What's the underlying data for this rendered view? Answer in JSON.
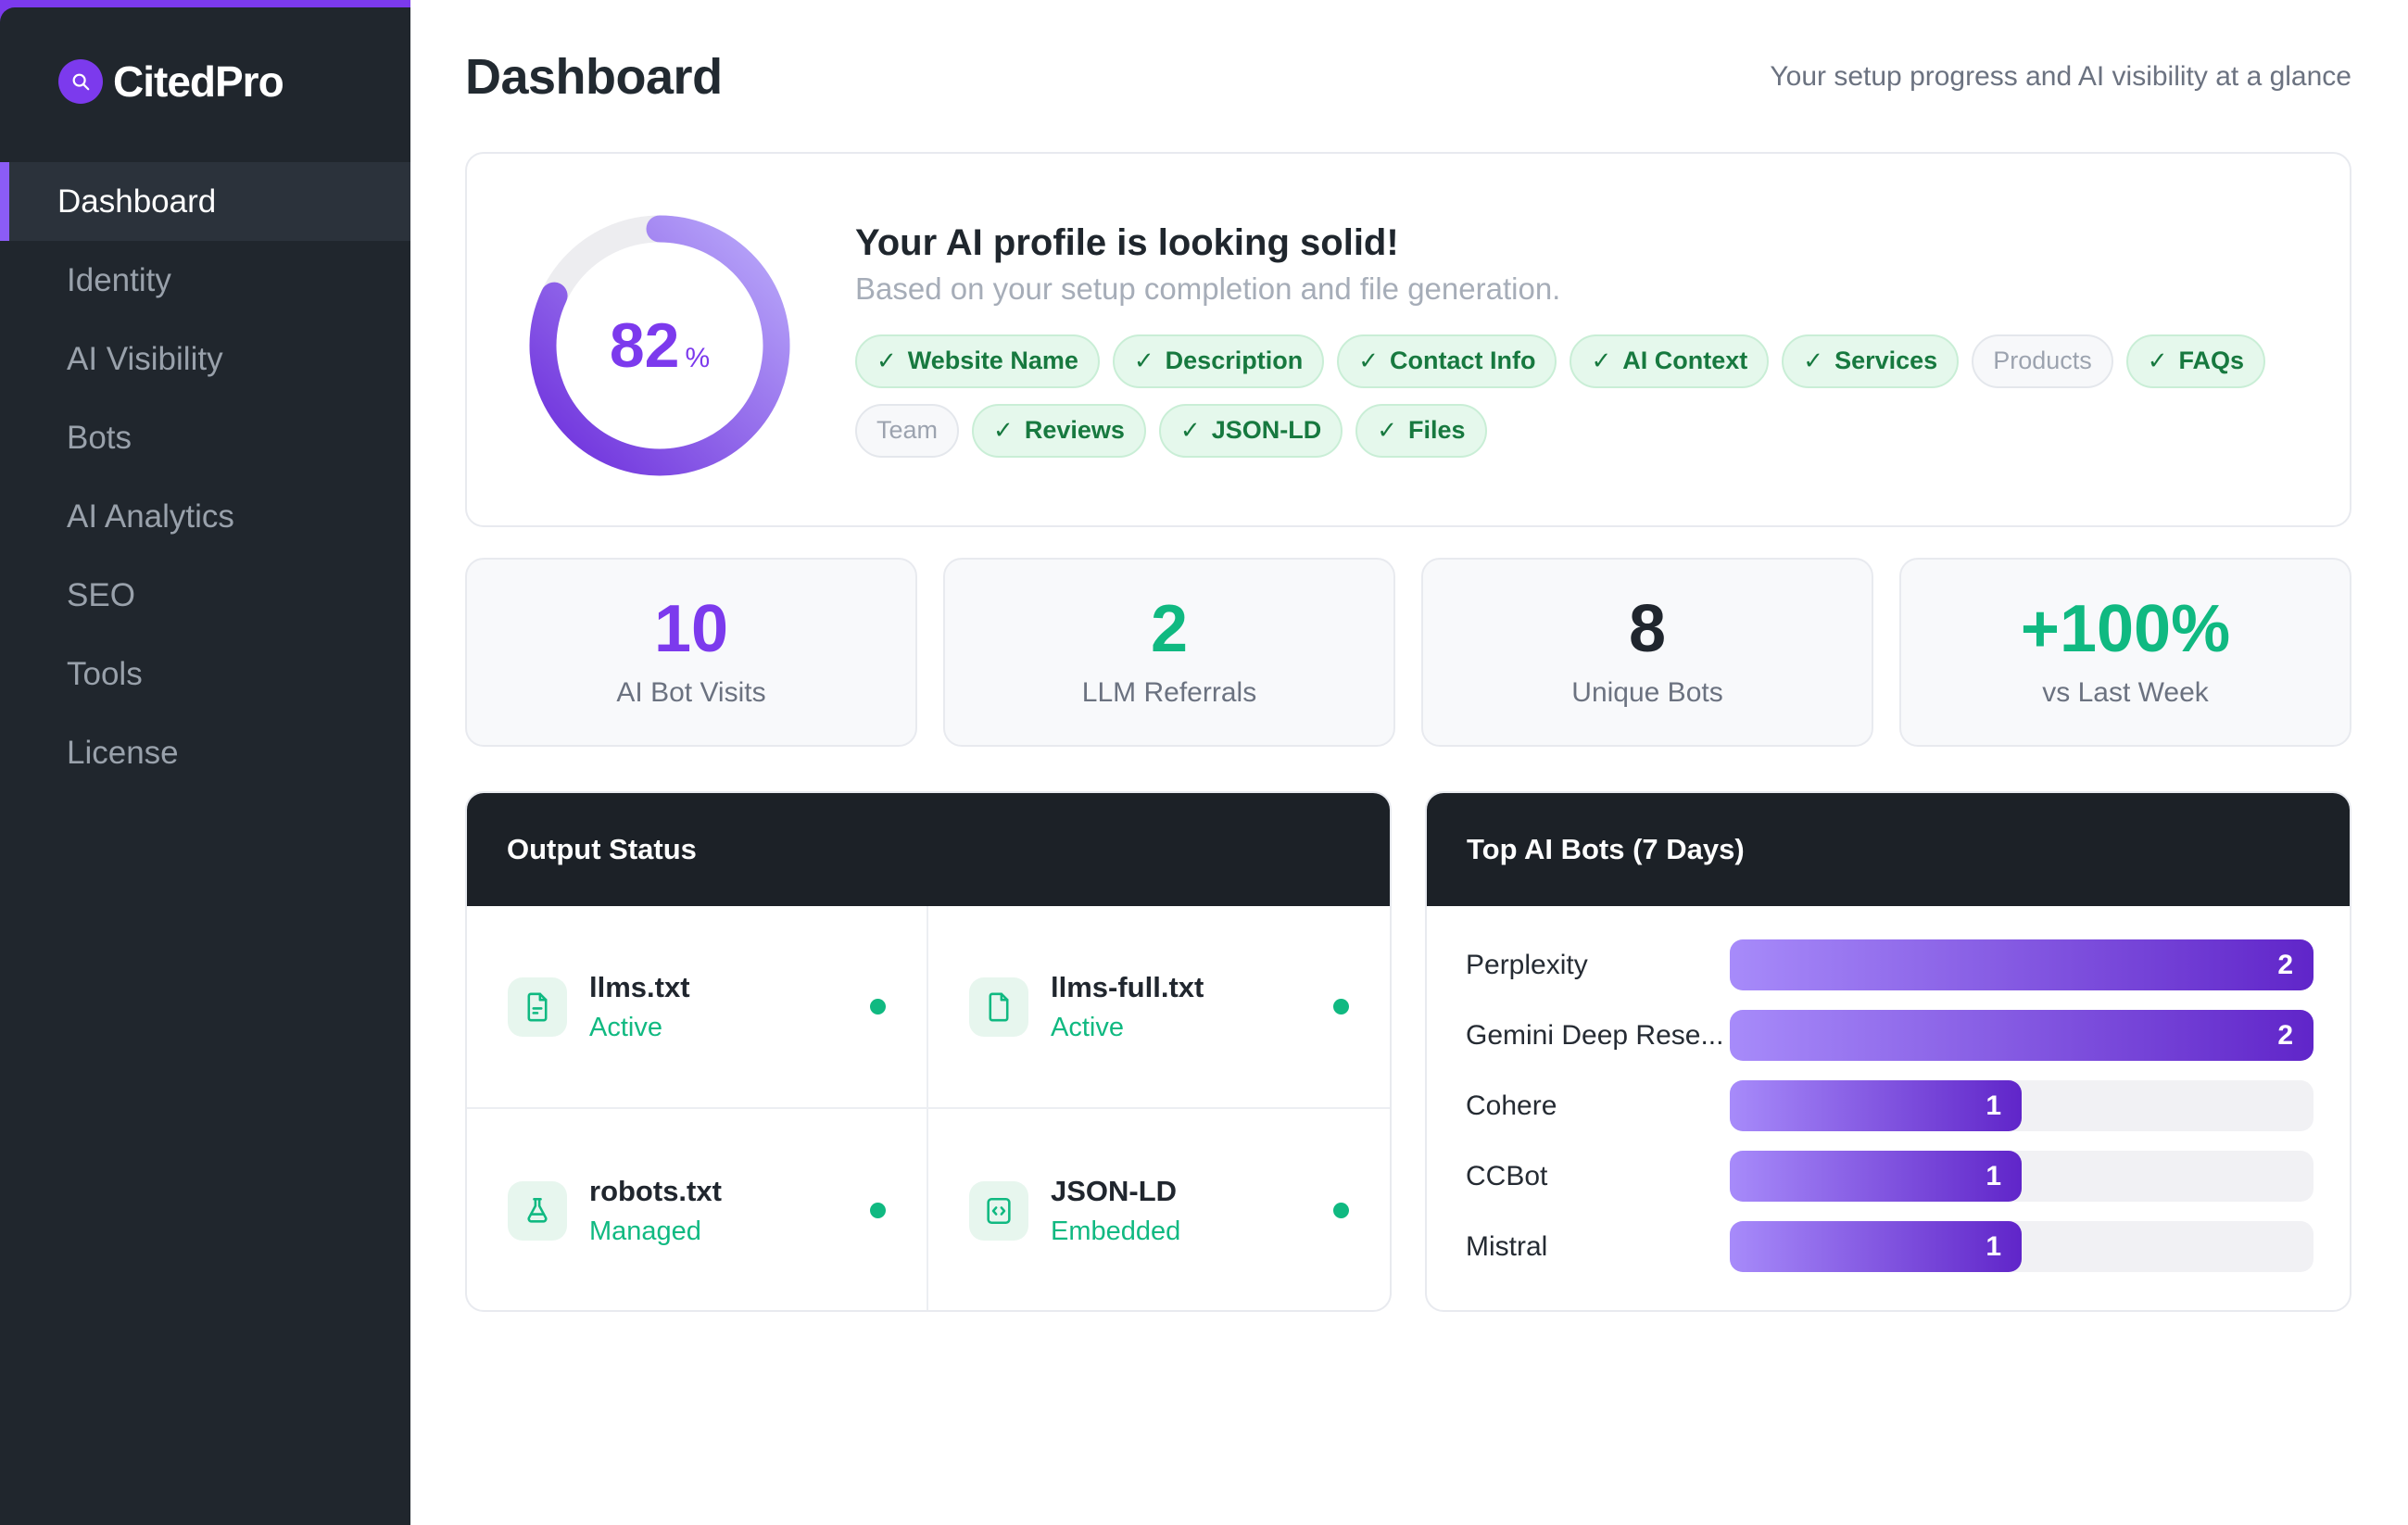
{
  "sidebar": {
    "logo": "CitedPro",
    "items": [
      {
        "label": "Dashboard",
        "active": true
      },
      {
        "label": "Identity",
        "active": false
      },
      {
        "label": "AI Visibility",
        "active": false
      },
      {
        "label": "Bots",
        "active": false
      },
      {
        "label": "AI Analytics",
        "active": false
      },
      {
        "label": "SEO",
        "active": false
      },
      {
        "label": "Tools",
        "active": false
      },
      {
        "label": "License",
        "active": false
      }
    ]
  },
  "header": {
    "title": "Dashboard",
    "subtitle": "Your setup progress and AI visibility at a glance"
  },
  "profile": {
    "percent": 82,
    "percent_suffix": "%",
    "title": "Your AI profile is looking solid!",
    "subtitle": "Based on your setup completion and file generation.",
    "badges": [
      {
        "label": "Website Name",
        "done": true
      },
      {
        "label": "Description",
        "done": true
      },
      {
        "label": "Contact Info",
        "done": true
      },
      {
        "label": "AI Context",
        "done": true
      },
      {
        "label": "Services",
        "done": true
      },
      {
        "label": "Products",
        "done": false
      },
      {
        "label": "FAQs",
        "done": true
      },
      {
        "label": "Team",
        "done": false
      },
      {
        "label": "Reviews",
        "done": true
      },
      {
        "label": "JSON-LD",
        "done": true
      },
      {
        "label": "Files",
        "done": true
      }
    ]
  },
  "stats": [
    {
      "value": "10",
      "label": "AI Bot Visits",
      "color": "purple"
    },
    {
      "value": "2",
      "label": "LLM Referrals",
      "color": "green"
    },
    {
      "value": "8",
      "label": "Unique Bots",
      "color": "dark"
    },
    {
      "value": "+100%",
      "label": "vs Last Week",
      "color": "green"
    }
  ],
  "output_status": {
    "title": "Output Status",
    "files": [
      {
        "name": "llms.txt",
        "status": "Active",
        "icon": "file-text-icon"
      },
      {
        "name": "llms-full.txt",
        "status": "Active",
        "icon": "file-icon"
      },
      {
        "name": "robots.txt",
        "status": "Managed",
        "icon": "flask-icon"
      },
      {
        "name": "JSON-LD",
        "status": "Embedded",
        "icon": "code-icon"
      }
    ]
  },
  "top_bots": {
    "title": "Top AI Bots (7 Days)"
  },
  "chart_data": {
    "type": "bar",
    "orientation": "horizontal",
    "title": "Top AI Bots (7 Days)",
    "categories": [
      "Perplexity",
      "Gemini Deep Rese...",
      "Cohere",
      "CCBot",
      "Mistral"
    ],
    "values": [
      2,
      2,
      1,
      1,
      1
    ],
    "xlim": [
      0,
      2
    ],
    "bar_color_gradient": [
      "#a78bfa",
      "#6025c9"
    ],
    "track_color": "#f1f1f4"
  },
  "colors": {
    "accent_purple": "#7c3aed",
    "accent_green": "#10b981",
    "sidebar_bg": "#20262d",
    "panel_header_bg": "#1c2127"
  }
}
